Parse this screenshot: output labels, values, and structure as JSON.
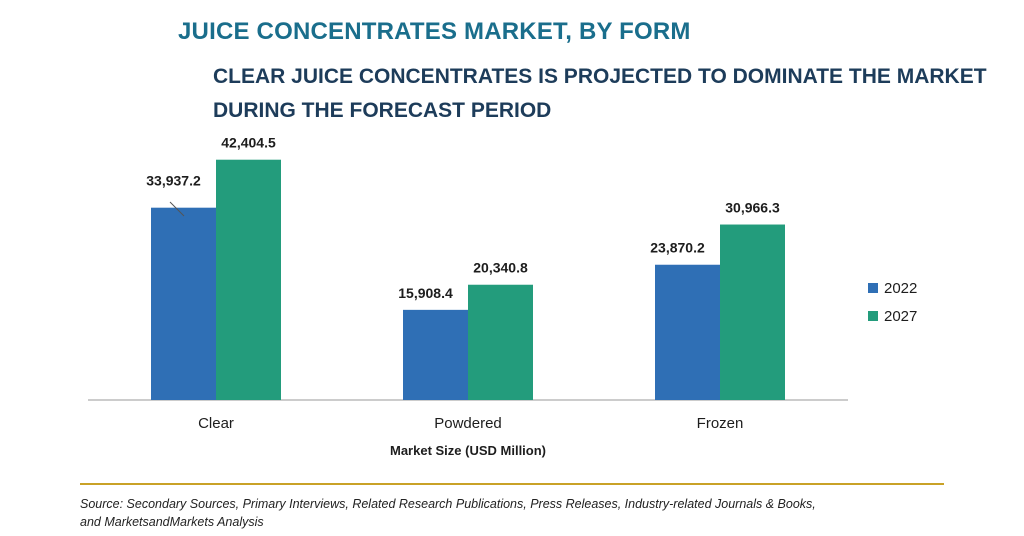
{
  "title": "JUICE CONCENTRATES MARKET, BY FORM",
  "subtitle_line1": "CLEAR JUICE CONCENTRATES IS PROJECTED TO DOMINATE THE MARKET",
  "subtitle_line2": "DURING THE FORECAST PERIOD",
  "source_line1": "Source: Secondary Sources, Primary Interviews, Related Research Publications, Press Releases, Industry-related Journals & Books,",
  "source_line2": "and MarketsandMarkets Analysis",
  "chart_data": {
    "type": "bar",
    "categories": [
      "Clear",
      "Powdered",
      "Frozen"
    ],
    "series": [
      {
        "name": "2022",
        "values": [
          33937.2,
          15908.4,
          23870.2
        ],
        "labels": [
          "33,937.2",
          "15,908.4",
          "23,870.2"
        ],
        "color": "#2f6fb5"
      },
      {
        "name": "2027",
        "values": [
          42404.5,
          20340.8,
          30966.3
        ],
        "labels": [
          "42,404.5",
          "20,340.8",
          "30,966.3"
        ],
        "color": "#239c7c"
      }
    ],
    "xlabel": "Market Size (USD Million)",
    "ylabel": "",
    "ylim": [
      0,
      45000
    ],
    "grid": false,
    "legend_position": "right"
  }
}
